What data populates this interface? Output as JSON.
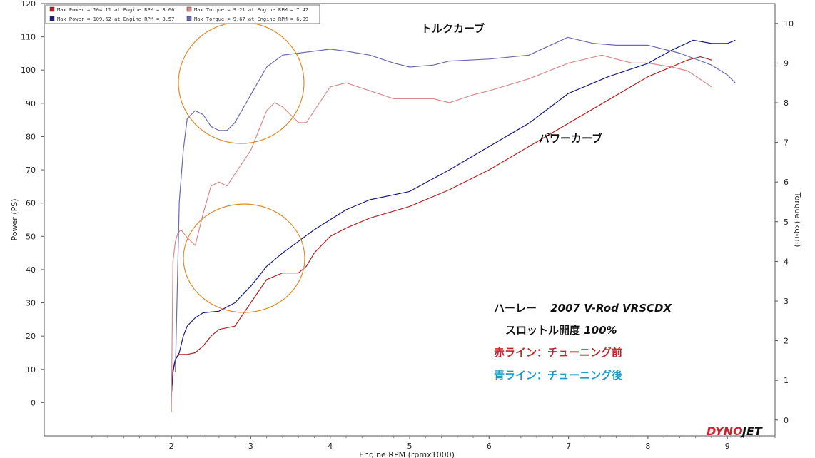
{
  "colors": {
    "before_power": "#b22222",
    "before_torque": "#d98a8a",
    "after_power": "#1a1a80",
    "after_torque": "#6a6ab0",
    "circle": "#e08a2a",
    "red_text": "#c0282d",
    "blue_text": "#1e9bc8"
  },
  "legend": [
    {
      "text": "Max Power = 104.11 at Engine RPM = 8.66",
      "color_key": "before_power"
    },
    {
      "text": "Max Torque = 9.21 at Engine RPM = 7.42",
      "color_key": "before_torque"
    },
    {
      "text": "Max Power = 109.62 at Engine RPM = 8.57",
      "color_key": "after_power"
    },
    {
      "text": "Max Torque = 9.67 at Engine RPM = 6.99",
      "color_key": "after_torque"
    }
  ],
  "annotations": {
    "torque_curve": "トルクカーブ",
    "power_curve": "パワーカーブ"
  },
  "info": {
    "model_prefix": "ハーレー",
    "model": "2007 V-Rod VRSCDX",
    "throttle_prefix": "スロットル開度",
    "throttle_value": "100%",
    "red_line": "赤ライン：チューニング前",
    "blue_line": "青ライン：チューニング後"
  },
  "logo": {
    "part1": "DYNO",
    "part2": "JET"
  },
  "chart_data": {
    "type": "line",
    "xlabel": "Engine RPM (rpmx1000)",
    "ylabel_left": "Power (PS)",
    "ylabel_right": "Torque (kg-m)",
    "xlim": [
      0.4,
      9.6
    ],
    "ylim_left": [
      -10,
      120
    ],
    "ylim_right": [
      -0.4,
      10.5
    ],
    "x_ticks": [
      2,
      3,
      4,
      5,
      6,
      7,
      8,
      9
    ],
    "y_ticks_left": [
      0,
      10,
      20,
      30,
      40,
      50,
      60,
      70,
      80,
      90,
      100,
      110,
      120
    ],
    "y_ticks_right": [
      0,
      1,
      2,
      3,
      4,
      5,
      6,
      7,
      8,
      9,
      10
    ],
    "grid": false,
    "legend_position": "top-left",
    "series": [
      {
        "axis": "left",
        "color_key": "before_power",
        "x": [
          2.0,
          2.02,
          2.05,
          2.1,
          2.2,
          2.3,
          2.4,
          2.5,
          2.6,
          2.8,
          3.0,
          3.2,
          3.4,
          3.6,
          3.7,
          3.8,
          4.0,
          4.2,
          4.5,
          5.0,
          5.5,
          6.0,
          6.5,
          7.0,
          7.5,
          8.0,
          8.3,
          8.5,
          8.66,
          8.8
        ],
        "y": [
          2,
          10,
          13,
          14.5,
          14.5,
          15,
          17,
          20,
          22,
          23,
          30,
          37,
          39,
          39,
          41,
          45,
          50,
          52.5,
          55.5,
          59,
          64,
          70,
          77,
          84,
          91,
          98,
          101,
          103,
          104,
          103
        ]
      },
      {
        "axis": "left",
        "color_key": "after_power",
        "x": [
          2.0,
          2.02,
          2.05,
          2.1,
          2.15,
          2.2,
          2.3,
          2.4,
          2.6,
          2.8,
          3.0,
          3.2,
          3.4,
          3.6,
          3.8,
          4.0,
          4.2,
          4.5,
          5.0,
          5.5,
          6.0,
          6.5,
          7.0,
          7.5,
          8.0,
          8.3,
          8.57,
          8.8,
          9.0,
          9.1
        ],
        "y": [
          2,
          9,
          13,
          15,
          20,
          23,
          25.5,
          27,
          27.5,
          30,
          35,
          41,
          45,
          48.5,
          52,
          55,
          58,
          61,
          63.5,
          70,
          77,
          84,
          93,
          98,
          102,
          106,
          109,
          108,
          108,
          109
        ]
      },
      {
        "axis": "right",
        "color_key": "before_torque",
        "x": [
          2.0,
          2.02,
          2.05,
          2.08,
          2.12,
          2.2,
          2.3,
          2.4,
          2.5,
          2.6,
          2.7,
          2.8,
          3.0,
          3.2,
          3.3,
          3.4,
          3.5,
          3.6,
          3.7,
          3.8,
          4.0,
          4.2,
          4.5,
          4.8,
          5.0,
          5.3,
          5.5,
          5.8,
          6.0,
          6.5,
          7.0,
          7.42,
          7.6,
          7.8,
          8.0,
          8.3,
          8.5,
          8.8
        ],
        "y": [
          0.2,
          4.0,
          4.5,
          4.7,
          4.8,
          4.6,
          4.4,
          5.2,
          5.9,
          6.0,
          5.9,
          6.2,
          6.8,
          7.8,
          8.0,
          7.9,
          7.7,
          7.5,
          7.5,
          7.8,
          8.4,
          8.5,
          8.3,
          8.1,
          8.1,
          8.1,
          8.0,
          8.2,
          8.3,
          8.6,
          9.0,
          9.2,
          9.1,
          9.0,
          9.0,
          8.9,
          8.8,
          8.4
        ]
      },
      {
        "axis": "right",
        "color_key": "after_torque",
        "x": [
          2.05,
          2.1,
          2.15,
          2.2,
          2.3,
          2.4,
          2.5,
          2.6,
          2.7,
          2.8,
          3.0,
          3.2,
          3.4,
          3.6,
          3.8,
          4.0,
          4.2,
          4.5,
          4.8,
          5.0,
          5.3,
          5.5,
          6.0,
          6.5,
          6.99,
          7.3,
          7.6,
          8.0,
          8.4,
          8.8,
          9.0,
          9.1
        ],
        "y": [
          1.2,
          5.5,
          6.8,
          7.6,
          7.8,
          7.7,
          7.4,
          7.3,
          7.3,
          7.5,
          8.2,
          8.9,
          9.2,
          9.25,
          9.3,
          9.35,
          9.3,
          9.2,
          9.0,
          8.9,
          8.95,
          9.05,
          9.1,
          9.2,
          9.65,
          9.5,
          9.45,
          9.45,
          9.25,
          8.95,
          8.7,
          8.5
        ]
      }
    ]
  }
}
